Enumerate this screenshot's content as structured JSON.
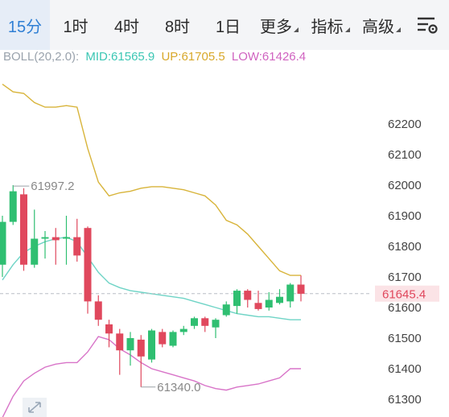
{
  "tabs": [
    {
      "label": "15分",
      "active": true
    },
    {
      "label": "1时"
    },
    {
      "label": "4时"
    },
    {
      "label": "8时"
    },
    {
      "label": "1日"
    },
    {
      "label": "更多",
      "dropdown": true
    },
    {
      "label": "指标",
      "dropdown": true
    },
    {
      "label": "高级",
      "dropdown": true
    }
  ],
  "menu_icon": "chart-settings-icon",
  "indicator": {
    "name": "BOLL(20,2.0):",
    "mid": "MID:61565.9",
    "up": "UP:61705.5",
    "low": "LOW:61426.4"
  },
  "colors": {
    "active_tab": "#2f7fd4",
    "up_candle": "#2fbf71",
    "down_candle": "#e0485d",
    "mid_line": "#6fd4c6",
    "upper_line": "#d8b43a",
    "lower_line": "#d874c8",
    "indicator_label": "#9aa3ad",
    "current_price_text": "#e0485d",
    "current_price_bg": "#fbe3e6"
  },
  "current_price": "61645.4",
  "annotations": {
    "high": "61997.2",
    "low": "61340.0"
  },
  "chart_data": {
    "type": "candlestick",
    "y_ticks": [
      62200,
      62100,
      62000,
      61900,
      61800,
      61700,
      61600,
      61500,
      61400,
      61300
    ],
    "ylim": [
      61260,
      62300
    ],
    "current_price": 61645.4,
    "high_marker": 61997.2,
    "low_marker": 61340.0,
    "candles": [
      {
        "o": 61740,
        "c": 61880,
        "h": 61900,
        "l": 61700
      },
      {
        "o": 61880,
        "c": 61980,
        "h": 62000,
        "l": 61870
      },
      {
        "o": 61970,
        "c": 61740,
        "h": 61990,
        "l": 61720
      },
      {
        "o": 61740,
        "c": 61825,
        "h": 61920,
        "l": 61730
      },
      {
        "o": 61825,
        "c": 61830,
        "h": 61850,
        "l": 61760
      },
      {
        "o": 61830,
        "c": 61820,
        "h": 61860,
        "l": 61740
      },
      {
        "o": 61825,
        "c": 61830,
        "h": 61900,
        "l": 61740
      },
      {
        "o": 61830,
        "c": 61770,
        "h": 61890,
        "l": 61750
      },
      {
        "o": 61860,
        "c": 61620,
        "h": 61865,
        "l": 61580
      },
      {
        "o": 61620,
        "c": 61560,
        "h": 61640,
        "l": 61540
      },
      {
        "o": 61545,
        "c": 61515,
        "h": 61560,
        "l": 61470
      },
      {
        "o": 61515,
        "c": 61460,
        "h": 61530,
        "l": 61380
      },
      {
        "o": 61460,
        "c": 61500,
        "h": 61520,
        "l": 61410
      },
      {
        "o": 61495,
        "c": 61440,
        "h": 61510,
        "l": 61340
      },
      {
        "o": 61430,
        "c": 61525,
        "h": 61530,
        "l": 61420
      },
      {
        "o": 61520,
        "c": 61480,
        "h": 61530,
        "l": 61470
      },
      {
        "o": 61475,
        "c": 61520,
        "h": 61525,
        "l": 61470
      },
      {
        "o": 61520,
        "c": 61530,
        "h": 61540,
        "l": 61510
      },
      {
        "o": 61540,
        "c": 61565,
        "h": 61570,
        "l": 61530
      },
      {
        "o": 61565,
        "c": 61540,
        "h": 61570,
        "l": 61520
      },
      {
        "o": 61535,
        "c": 61560,
        "h": 61565,
        "l": 61500
      },
      {
        "o": 61575,
        "c": 61610,
        "h": 61620,
        "l": 61570
      },
      {
        "o": 61605,
        "c": 61655,
        "h": 61660,
        "l": 61580
      },
      {
        "o": 61655,
        "c": 61625,
        "h": 61660,
        "l": 61600
      },
      {
        "o": 61615,
        "c": 61595,
        "h": 61655,
        "l": 61590
      },
      {
        "o": 61600,
        "c": 61625,
        "h": 61650,
        "l": 61590
      },
      {
        "o": 61615,
        "c": 61635,
        "h": 61660,
        "l": 61610
      },
      {
        "o": 61620,
        "c": 61675,
        "h": 61680,
        "l": 61600
      },
      {
        "o": 61675,
        "c": 61645,
        "h": 61705,
        "l": 61620
      }
    ],
    "upper_band": [
      62330,
      62305,
      62300,
      62270,
      62255,
      62255,
      62260,
      62255,
      62120,
      62010,
      61965,
      61975,
      61980,
      61990,
      61995,
      61995,
      61990,
      61985,
      61975,
      61965,
      61935,
      61885,
      61870,
      61840,
      61800,
      61760,
      61720,
      61705,
      61705
    ],
    "mid_band": [
      61690,
      61740,
      61780,
      61800,
      61815,
      61825,
      61830,
      61815,
      61765,
      61715,
      61680,
      61665,
      61655,
      61650,
      61645,
      61640,
      61635,
      61630,
      61620,
      61610,
      61600,
      61590,
      61580,
      61575,
      61570,
      61570,
      61565,
      61560,
      61560
    ],
    "lower_band": [
      61240,
      61310,
      61360,
      61385,
      61405,
      61415,
      61420,
      61420,
      61455,
      61505,
      61495,
      61465,
      61445,
      61420,
      61400,
      61390,
      61380,
      61370,
      61360,
      61345,
      61335,
      61330,
      61340,
      61345,
      61350,
      61360,
      61370,
      61400,
      61400
    ]
  }
}
